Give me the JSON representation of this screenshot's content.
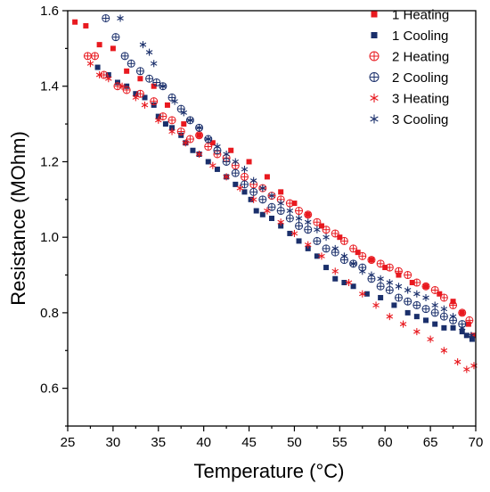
{
  "chart_data": {
    "type": "scatter",
    "title": "",
    "xlabel": "Temperature (°C)",
    "ylabel": "Resistance (MOhm)",
    "xlim": [
      25,
      70
    ],
    "ylim": [
      0.5,
      1.6
    ],
    "x_ticks": [
      25,
      30,
      35,
      40,
      45,
      50,
      55,
      60,
      65,
      70
    ],
    "y_ticks": [
      0.6,
      0.8,
      1.0,
      1.2,
      1.4,
      1.6
    ],
    "y_tick_labels": [
      "0.6",
      "0.8",
      "1.0",
      "1.2",
      "1.4",
      "1.6"
    ],
    "grid": false,
    "legend_position": "top-right",
    "series": [
      {
        "name": "1 Heating",
        "marker": "square",
        "color": "#e8191f",
        "points": [
          [
            25.8,
            1.57
          ],
          [
            27,
            1.56
          ],
          [
            28.5,
            1.51
          ],
          [
            30,
            1.5
          ],
          [
            31.5,
            1.44
          ],
          [
            33,
            1.42
          ],
          [
            34.5,
            1.4
          ],
          [
            36,
            1.35
          ],
          [
            37.8,
            1.3
          ],
          [
            39.5,
            1.27
          ],
          [
            41,
            1.25
          ],
          [
            43,
            1.23
          ],
          [
            45,
            1.2
          ],
          [
            47,
            1.16
          ],
          [
            48.5,
            1.12
          ],
          [
            50,
            1.09
          ],
          [
            51.5,
            1.06
          ],
          [
            53,
            1.03
          ],
          [
            55,
            1.0
          ],
          [
            57,
            0.96
          ],
          [
            58.5,
            0.94
          ],
          [
            60,
            0.92
          ],
          [
            61.5,
            0.9
          ],
          [
            63,
            0.88
          ],
          [
            64.5,
            0.87
          ],
          [
            66,
            0.85
          ],
          [
            67.5,
            0.83
          ],
          [
            68.5,
            0.8
          ],
          [
            69.2,
            0.77
          ],
          [
            69.7,
            0.74
          ]
        ]
      },
      {
        "name": "1 Cooling",
        "marker": "square",
        "color": "#1a2f6b",
        "points": [
          [
            28.3,
            1.45
          ],
          [
            29.5,
            1.43
          ],
          [
            30.5,
            1.41
          ],
          [
            31.5,
            1.4
          ],
          [
            32.5,
            1.38
          ],
          [
            33.5,
            1.37
          ],
          [
            34.5,
            1.35
          ],
          [
            35,
            1.32
          ],
          [
            35.8,
            1.3
          ],
          [
            36.5,
            1.29
          ],
          [
            37.5,
            1.27
          ],
          [
            38,
            1.25
          ],
          [
            38.8,
            1.23
          ],
          [
            39.5,
            1.22
          ],
          [
            40.5,
            1.2
          ],
          [
            41.5,
            1.18
          ],
          [
            42.5,
            1.16
          ],
          [
            43.5,
            1.14
          ],
          [
            44.5,
            1.12
          ],
          [
            45.2,
            1.1
          ],
          [
            45.8,
            1.07
          ],
          [
            46.5,
            1.06
          ],
          [
            47.5,
            1.05
          ],
          [
            48.5,
            1.03
          ],
          [
            49.5,
            1.01
          ],
          [
            50.5,
            0.99
          ],
          [
            51.5,
            0.97
          ],
          [
            52.5,
            0.95
          ],
          [
            53.5,
            0.92
          ],
          [
            54.5,
            0.89
          ],
          [
            55.5,
            0.88
          ],
          [
            56.5,
            0.87
          ],
          [
            58,
            0.85
          ],
          [
            59.5,
            0.84
          ],
          [
            61,
            0.82
          ],
          [
            62.5,
            0.8
          ],
          [
            63.5,
            0.79
          ],
          [
            64.5,
            0.78
          ],
          [
            65.5,
            0.77
          ],
          [
            66.5,
            0.76
          ],
          [
            67.5,
            0.76
          ],
          [
            68.5,
            0.75
          ],
          [
            69,
            0.74
          ],
          [
            69.6,
            0.73
          ]
        ]
      },
      {
        "name": "2 Heating",
        "marker": "circle-plus",
        "color": "#e8191f",
        "points": [
          [
            27.2,
            1.48
          ],
          [
            28,
            1.48
          ],
          [
            29,
            1.43
          ],
          [
            30.5,
            1.4
          ],
          [
            31.5,
            1.39
          ],
          [
            33,
            1.38
          ],
          [
            34.5,
            1.36
          ],
          [
            35.5,
            1.32
          ],
          [
            36.5,
            1.31
          ],
          [
            37.5,
            1.28
          ],
          [
            38.5,
            1.26
          ],
          [
            39.5,
            1.27
          ],
          [
            40.5,
            1.24
          ],
          [
            41.5,
            1.22
          ],
          [
            42.5,
            1.21
          ],
          [
            43.5,
            1.19
          ],
          [
            44.5,
            1.16
          ],
          [
            45.5,
            1.14
          ],
          [
            46.5,
            1.13
          ],
          [
            47.5,
            1.11
          ],
          [
            48.5,
            1.1
          ],
          [
            49.5,
            1.09
          ],
          [
            50.5,
            1.07
          ],
          [
            51.5,
            1.06
          ],
          [
            52.5,
            1.04
          ],
          [
            53.5,
            1.02
          ],
          [
            54.5,
            1.01
          ],
          [
            55.5,
            0.99
          ],
          [
            56.5,
            0.97
          ],
          [
            57.5,
            0.95
          ],
          [
            58.5,
            0.94
          ],
          [
            59.5,
            0.93
          ],
          [
            60.5,
            0.92
          ],
          [
            61.5,
            0.91
          ],
          [
            62.5,
            0.9
          ],
          [
            63.5,
            0.88
          ],
          [
            64.5,
            0.87
          ],
          [
            65.5,
            0.86
          ],
          [
            66.5,
            0.84
          ],
          [
            67.5,
            0.82
          ],
          [
            68.5,
            0.8
          ],
          [
            69.3,
            0.78
          ]
        ]
      },
      {
        "name": "2 Cooling",
        "marker": "circle-plus",
        "color": "#1a2f6b",
        "points": [
          [
            29.2,
            1.58
          ],
          [
            30.3,
            1.53
          ],
          [
            31.3,
            1.48
          ],
          [
            32,
            1.46
          ],
          [
            33,
            1.44
          ],
          [
            34,
            1.42
          ],
          [
            34.8,
            1.41
          ],
          [
            35.5,
            1.4
          ],
          [
            36.5,
            1.37
          ],
          [
            37.5,
            1.34
          ],
          [
            38.5,
            1.31
          ],
          [
            39.5,
            1.29
          ],
          [
            40.5,
            1.26
          ],
          [
            41.5,
            1.23
          ],
          [
            42.5,
            1.2
          ],
          [
            43.5,
            1.17
          ],
          [
            44.5,
            1.14
          ],
          [
            45.5,
            1.12
          ],
          [
            46.5,
            1.1
          ],
          [
            47.5,
            1.08
          ],
          [
            48.5,
            1.07
          ],
          [
            49.5,
            1.05
          ],
          [
            50.5,
            1.03
          ],
          [
            51.5,
            1.02
          ],
          [
            52.5,
            0.99
          ],
          [
            53.5,
            0.97
          ],
          [
            54.5,
            0.96
          ],
          [
            55.5,
            0.94
          ],
          [
            56.5,
            0.93
          ],
          [
            57.5,
            0.92
          ],
          [
            58.5,
            0.89
          ],
          [
            59.5,
            0.87
          ],
          [
            60.5,
            0.86
          ],
          [
            61.5,
            0.84
          ],
          [
            62.5,
            0.83
          ],
          [
            63.5,
            0.82
          ],
          [
            64.5,
            0.81
          ],
          [
            65.5,
            0.8
          ],
          [
            66.5,
            0.79
          ],
          [
            67.5,
            0.78
          ],
          [
            68.5,
            0.77
          ]
        ]
      },
      {
        "name": "3 Heating",
        "marker": "asterisk",
        "color": "#e8191f",
        "points": [
          [
            27.5,
            1.46
          ],
          [
            28.5,
            1.43
          ],
          [
            29.5,
            1.42
          ],
          [
            31,
            1.4
          ],
          [
            32.5,
            1.37
          ],
          [
            33.5,
            1.35
          ],
          [
            35,
            1.31
          ],
          [
            36.5,
            1.28
          ],
          [
            38,
            1.25
          ],
          [
            39.5,
            1.22
          ],
          [
            41,
            1.19
          ],
          [
            42.5,
            1.16
          ],
          [
            44,
            1.13
          ],
          [
            45.5,
            1.1
          ],
          [
            47,
            1.07
          ],
          [
            48.5,
            1.04
          ],
          [
            50,
            1.01
          ],
          [
            51.5,
            0.98
          ],
          [
            53,
            0.95
          ],
          [
            54.5,
            0.91
          ],
          [
            56,
            0.88
          ],
          [
            57.5,
            0.85
          ],
          [
            59,
            0.82
          ],
          [
            60.5,
            0.79
          ],
          [
            62,
            0.77
          ],
          [
            63.5,
            0.75
          ],
          [
            65,
            0.73
          ],
          [
            66.5,
            0.7
          ],
          [
            68,
            0.67
          ],
          [
            69,
            0.65
          ],
          [
            69.8,
            0.66
          ]
        ]
      },
      {
        "name": "3 Cooling",
        "marker": "asterisk",
        "color": "#1a2f6b",
        "points": [
          [
            30.8,
            1.58
          ],
          [
            33.3,
            1.51
          ],
          [
            34,
            1.49
          ],
          [
            34.5,
            1.46
          ],
          [
            35.5,
            1.4
          ],
          [
            36.8,
            1.36
          ],
          [
            37.8,
            1.33
          ],
          [
            38.5,
            1.31
          ],
          [
            39.5,
            1.29
          ],
          [
            40.5,
            1.26
          ],
          [
            41.5,
            1.24
          ],
          [
            42.5,
            1.22
          ],
          [
            43.5,
            1.2
          ],
          [
            44.5,
            1.18
          ],
          [
            45.5,
            1.15
          ],
          [
            46.5,
            1.13
          ],
          [
            47.5,
            1.11
          ],
          [
            48.5,
            1.09
          ],
          [
            49.5,
            1.07
          ],
          [
            50.5,
            1.05
          ],
          [
            51.5,
            1.04
          ],
          [
            52.5,
            1.02
          ],
          [
            53.5,
            1.0
          ],
          [
            54.5,
            0.97
          ],
          [
            55.5,
            0.95
          ],
          [
            56.5,
            0.93
          ],
          [
            57.5,
            0.91
          ],
          [
            58.5,
            0.9
          ],
          [
            59.5,
            0.89
          ],
          [
            60.5,
            0.88
          ],
          [
            61.5,
            0.87
          ],
          [
            62.5,
            0.86
          ],
          [
            63.5,
            0.85
          ],
          [
            64.5,
            0.84
          ],
          [
            65.5,
            0.82
          ],
          [
            66.5,
            0.81
          ],
          [
            67.5,
            0.79
          ],
          [
            68.5,
            0.76
          ],
          [
            69.5,
            0.74
          ]
        ]
      }
    ]
  }
}
